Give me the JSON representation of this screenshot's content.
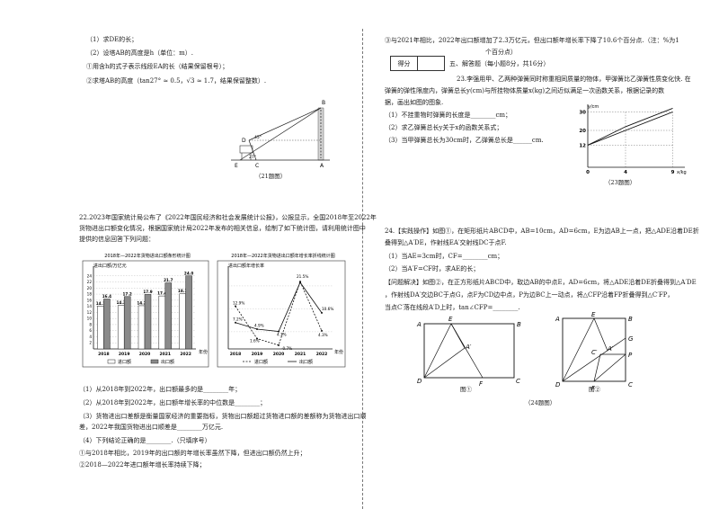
{
  "left": {
    "q21_1": "（1）求DE的长；",
    "q21_2": "（2）设塔AB的高度是h（单位：m）.",
    "q21_2a": "①用含h的式子表示线段EA的长（结果保留根号）；",
    "q21_2b": "②求塔AB的高度（tan27° ≈ 0.5，√3 ≈ 1.7，结果保留整数）.",
    "q21_fig_labels": [
      "B",
      "D",
      "C",
      "E",
      "A",
      "45°",
      "27°"
    ],
    "q21_caption": "（21题图）",
    "q22_intro_1": "22.2023年国家统计局公布了《2022年国民经济和社会发展统计公报》，公报显示，全国2018年至2022年",
    "q22_intro_2": "货物进出口额变化情况，根据国家统计局2022年发布的相关信息，绘制了如下统计图，请利用统计图中",
    "q22_intro_3": "提供的信息回答下列问题：",
    "q22_1": "（1）从2018年到2022年，出口额最多的是________年；",
    "q22_2": "（2）从2018年到2022年，出口额年增长率的中位数是________；",
    "q22_3a": "（3）货物进出口差额是衡量国家经济的重要指标，货物出口额超过货物进口额的差额称为货物进出口顺",
    "q22_3b": "差，2022年我国货物进出口顺差是________万亿元.",
    "q22_4": "（4）下列结论正确的是________.（只填序号）",
    "q22_4a": "①与2018年相比，2019年的出口额的年增长率虽然下降，但进出口额仍然上升；",
    "q22_4b": "②2018—2022年进口额年增长率持续下降；"
  },
  "right": {
    "q22_4c": "③与2021年相比，2022年出口额增加了2.3万亿元，但出口额年增长率下降了10.6个百分点.（注：%为1",
    "q22_4c2": "个百分点）",
    "score_table": [
      "得分",
      "评卷人"
    ],
    "sec5_title": "五、解答题（每小题8分，共16分）",
    "q23_1": "23.李强用甲、乙两种弹簧同时称重相同质量的物体，甲弹簧比乙弹簧性质变化快. 在",
    "q23_2": "弹簧的弹性限度内，弹簧总长y(cm)与所挂物体质量x(kg)之间近似满足一次函数关系，根据记录的数",
    "q23_3": "据，画出如图的图象.",
    "q23_a": "（1）不挂重物时弹簧的长度是________cm；",
    "q23_b": "（2）求乙弹簧总长y关于x的函数关系式；",
    "q23_c": "（3）当甲弹簧总长为30cm时，乙弹簧总长是______cm.",
    "q23_caption": "（23题图）",
    "q24_1": "24.【实践操作】如图①，在矩形纸片ABCD中，AB=10cm，AD=6cm，E为边AB上一点，把△ADE沿着DE折",
    "q24_2": "叠得到△A′DE，作射线EA′交射线DC于点F.",
    "q24_a": "（1）当AE=3cm时，CF=________cm；",
    "q24_b": "（2）当A′F=CF时，求AE的长；",
    "q24_c1": "【问题解决】如图②，在正方形纸片ABCD中，取边AB的中点E，AD=6cm，将△ADE沿着DE折叠得到△A′DE",
    "q24_c2": "，作射线DA′交边BC于点G，点F为CD边中点，P为边BC上一动点，将△CFP沿着FP折叠得到△C′FP，",
    "q24_c3": "当点C′落在线段A′D上时，tan∠CFP=________.",
    "fig1_caption": "图①",
    "fig2_caption": "图②",
    "q24_caption": "（24题图）"
  },
  "chart_data": [
    {
      "type": "bar",
      "title": "2018年—2022年货物进出口额条形统计图",
      "ylabel": "进出口额/万亿元",
      "xlabel": "年份",
      "categories": [
        "2018",
        "2019",
        "2020",
        "2021",
        "2022"
      ],
      "ylim": [
        0,
        26
      ],
      "yticks": [
        2,
        4,
        6,
        8,
        10,
        12,
        14,
        16,
        18,
        20,
        22,
        24
      ],
      "series": [
        {
          "name": "进口额",
          "color": "#ffffff",
          "values": [
            14.1,
            14.3,
            14.2,
            17.4,
            18.1
          ]
        },
        {
          "name": "出口额",
          "color": "#8a8a8a",
          "values": [
            16.4,
            17.2,
            17.9,
            21.7,
            24.0
          ]
        }
      ],
      "data_labels": [
        [
          "14.1",
          "14.3",
          "14.2",
          "17.4",
          "18.1"
        ],
        [
          "16.4",
          "17.2",
          "17.9",
          "21.7",
          "24.0"
        ]
      ],
      "legend": "bottom"
    },
    {
      "type": "line",
      "title": "2018年—2022年货物进出口额年增长率折线统计图",
      "ylabel": "进出口额年增长率",
      "xlabel": "年份",
      "categories": [
        "2018",
        "2019",
        "2020",
        "2021",
        "2022"
      ],
      "ylim": [
        -2,
        25
      ],
      "series": [
        {
          "name": "进口额",
          "style": "dashed",
          "values": [
            12.9,
            1.6,
            -0.7,
            21.5,
            4.3
          ]
        },
        {
          "name": "出口额",
          "style": "solid",
          "values": [
            7.2,
            4.9,
            4.1,
            21.2,
            10.6
          ]
        }
      ],
      "data_labels": [
        "12.9%",
        "7.2%",
        "4.9%",
        "1.6%",
        "4.1%",
        "-0.7%",
        "21.5%",
        "10.6%",
        "4.3%"
      ],
      "legend": "bottom"
    },
    {
      "type": "line",
      "title": "",
      "xlabel": "x/kg",
      "ylabel": "y/cm",
      "x": [
        0,
        4,
        9
      ],
      "yticks": [
        12,
        20,
        30
      ],
      "xticks": [
        0,
        4,
        9
      ],
      "series": [
        {
          "name": "",
          "points": [
            [
              0,
              12
            ],
            [
              4,
              20
            ],
            [
              9,
              30
            ]
          ]
        },
        {
          "name": "",
          "points": [
            [
              0,
              12
            ],
            [
              4,
              22
            ],
            [
              9,
              32
            ]
          ]
        }
      ]
    }
  ]
}
